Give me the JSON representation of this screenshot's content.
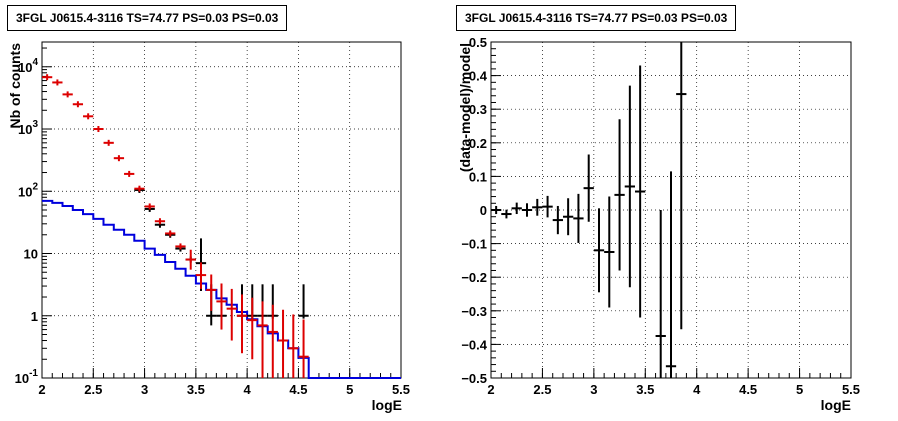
{
  "chart_data": [
    {
      "type": "line",
      "title": "3FGL J0615.4-3116 TS=74.77 PS=0.03 PS=0.03",
      "xlabel": "logE",
      "ylabel": "Nb of counts",
      "xlim": [
        2,
        5.5
      ],
      "ylim": [
        0.1,
        25000
      ],
      "yscale": "log",
      "grid": true,
      "x_ticks": [
        "2",
        "2.5",
        "3",
        "3.5",
        "4",
        "4.5",
        "5",
        "5.5"
      ],
      "y_ticks": [
        {
          "value": 0.1,
          "label": "10^-1"
        },
        {
          "value": 1,
          "label": "1"
        },
        {
          "value": 10,
          "label": "10"
        },
        {
          "value": 100,
          "label": "10^2"
        },
        {
          "value": 1000,
          "label": "10^3"
        },
        {
          "value": 10000,
          "label": "10^4"
        }
      ],
      "series": [
        {
          "role": "data",
          "color": "#000000",
          "points": [
            {
              "x": 2.95,
              "y": 105
            },
            {
              "x": 3.05,
              "y": 52
            },
            {
              "x": 3.15,
              "y": 29
            },
            {
              "x": 3.25,
              "y": 20
            },
            {
              "x": 3.35,
              "y": 12
            },
            {
              "x": 3.45,
              "y": 8
            },
            {
              "x": 3.55,
              "y": 7,
              "yerr": [
                4.5,
                10.5
              ]
            },
            {
              "x": 3.65,
              "y": 1,
              "yerr": [
                0.3,
                2.2
              ]
            },
            {
              "x": 3.75,
              "y": 1,
              "yerr": [
                0.1,
                2.2
              ]
            },
            {
              "x": 3.95,
              "y": 1,
              "yerr": [
                0.1,
                2.2
              ]
            },
            {
              "x": 4.05,
              "y": 1,
              "yerr": [
                0.1,
                2.2
              ]
            },
            {
              "x": 4.15,
              "y": 1,
              "yerr": [
                0.1,
                2.2
              ]
            },
            {
              "x": 4.25,
              "y": 1,
              "yerr": [
                0.1,
                2.2
              ]
            },
            {
              "x": 4.55,
              "y": 1,
              "yerr": [
                0.1,
                2.2
              ]
            }
          ]
        },
        {
          "role": "model-total",
          "color": "#dd0000",
          "points": [
            {
              "x": 2.05,
              "y": 6800
            },
            {
              "x": 2.15,
              "y": 5600
            },
            {
              "x": 2.25,
              "y": 3600
            },
            {
              "x": 2.35,
              "y": 2500
            },
            {
              "x": 2.45,
              "y": 1600
            },
            {
              "x": 2.55,
              "y": 1000
            },
            {
              "x": 2.65,
              "y": 600
            },
            {
              "x": 2.75,
              "y": 340
            },
            {
              "x": 2.85,
              "y": 190
            },
            {
              "x": 2.95,
              "y": 110
            },
            {
              "x": 3.05,
              "y": 57
            },
            {
              "x": 3.15,
              "y": 33
            },
            {
              "x": 3.25,
              "y": 21
            },
            {
              "x": 3.35,
              "y": 13
            },
            {
              "x": 3.45,
              "y": 8,
              "yerr": [
                2.5,
                3.5
              ]
            },
            {
              "x": 3.55,
              "y": 4.5,
              "yerr": [
                1.8,
                2.7
              ]
            },
            {
              "x": 3.65,
              "y": 2.6,
              "yerr": [
                1.4,
                2.0
              ]
            },
            {
              "x": 3.75,
              "y": 1.7,
              "yerr": [
                1.1,
                1.6
              ]
            },
            {
              "x": 3.85,
              "y": 1.3,
              "yerr": [
                0.9,
                1.4
              ]
            },
            {
              "x": 3.95,
              "y": 1.0,
              "yerr": [
                0.75,
                1.2
              ]
            },
            {
              "x": 4.05,
              "y": 0.85,
              "yerr": [
                0.65,
                1.1
              ]
            },
            {
              "x": 4.15,
              "y": 0.7,
              "yerr": [
                0.6,
                1.0
              ]
            },
            {
              "x": 4.25,
              "y": 0.55,
              "yerr": [
                0.45,
                0.95
              ]
            },
            {
              "x": 4.35,
              "y": 0.4,
              "yerr": [
                0.3,
                0.85
              ]
            },
            {
              "x": 4.45,
              "y": 0.3,
              "yerr": [
                0.2,
                0.75
              ]
            },
            {
              "x": 4.55,
              "y": 0.22,
              "yerr": [
                0.12,
                0.65
              ]
            }
          ]
        },
        {
          "role": "model-source",
          "color": "#0000dd",
          "step": true,
          "bin_edges": [
            2.0,
            2.1,
            2.2,
            2.3,
            2.4,
            2.5,
            2.6,
            2.7,
            2.8,
            2.9,
            3.0,
            3.1,
            3.2,
            3.3,
            3.4,
            3.5,
            3.6,
            3.7,
            3.8,
            3.9,
            4.0,
            4.1,
            4.2,
            4.3,
            4.4,
            4.5,
            4.6,
            5.5
          ],
          "values": [
            70,
            65,
            58,
            50,
            43,
            36,
            29,
            24,
            20,
            16,
            12,
            9.5,
            7.3,
            5.7,
            4.4,
            3.3,
            2.6,
            1.9,
            1.5,
            1.15,
            0.88,
            0.68,
            0.52,
            0.4,
            0.3,
            0.21,
            0.1
          ]
        }
      ]
    },
    {
      "type": "scatter",
      "title": "3FGL J0615.4-3116 TS=74.77 PS=0.03 PS=0.03",
      "xlabel": "logE",
      "ylabel": "(data-model)/model",
      "xlim": [
        2,
        5.5
      ],
      "ylim": [
        -0.5,
        0.5
      ],
      "grid": true,
      "x_ticks": [
        "2",
        "2.5",
        "3",
        "3.5",
        "4",
        "4.5",
        "5",
        "5.5"
      ],
      "y_ticks": [
        "-0.5",
        "-0.4",
        "-0.3",
        "-0.2",
        "-0.1",
        "0",
        "0.1",
        "0.2",
        "0.3",
        "0.4",
        "0.5"
      ],
      "series": [
        {
          "color": "#000000",
          "points": [
            {
              "x": 2.05,
              "y": 0.0,
              "err": 0.012
            },
            {
              "x": 2.15,
              "y": -0.012,
              "err": 0.013
            },
            {
              "x": 2.25,
              "y": 0.005,
              "err": 0.017
            },
            {
              "x": 2.35,
              "y": 0.0,
              "err": 0.02
            },
            {
              "x": 2.45,
              "y": 0.008,
              "err": 0.025
            },
            {
              "x": 2.55,
              "y": 0.01,
              "err": 0.032
            },
            {
              "x": 2.65,
              "y": -0.03,
              "err": 0.042
            },
            {
              "x": 2.75,
              "y": -0.02,
              "err": 0.055
            },
            {
              "x": 2.85,
              "y": -0.025,
              "err": 0.073
            },
            {
              "x": 2.95,
              "y": 0.065,
              "err": 0.1
            },
            {
              "x": 3.05,
              "y": -0.12,
              "err": 0.125
            },
            {
              "x": 3.15,
              "y": -0.125,
              "err": 0.165
            },
            {
              "x": 3.25,
              "y": 0.045,
              "err": 0.225
            },
            {
              "x": 3.35,
              "y": 0.07,
              "err": 0.3
            },
            {
              "x": 3.45,
              "y": 0.055,
              "err": 0.375
            },
            {
              "x": 3.65,
              "y": -0.375,
              "err": 0.375
            },
            {
              "x": 3.75,
              "y": -0.465,
              "err": 0.58
            },
            {
              "x": 3.85,
              "y": 0.345,
              "err": 0.7
            }
          ]
        }
      ]
    }
  ]
}
